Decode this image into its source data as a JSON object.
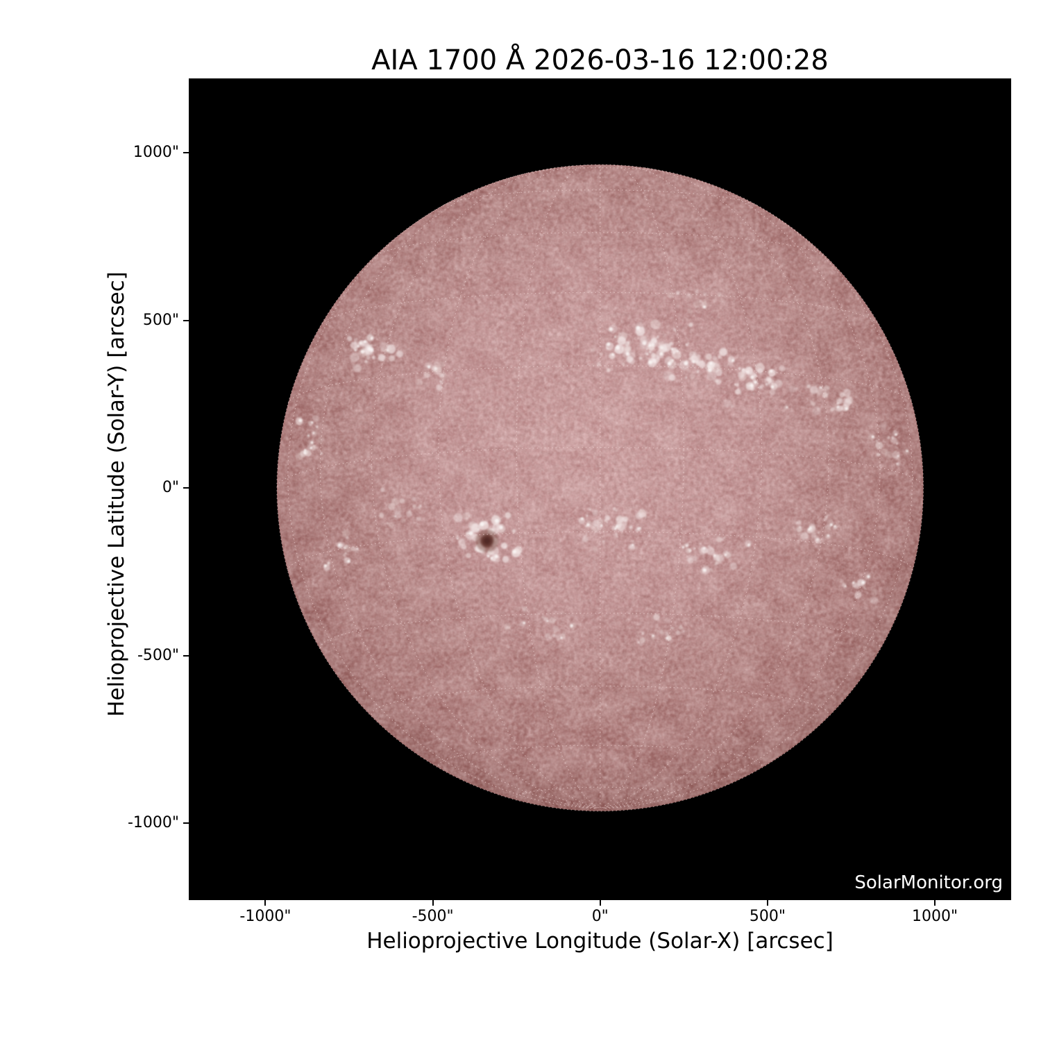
{
  "title": "AIA 1700 Å 2026-03-16 12:00:28",
  "watermark": "SolarMonitor.org",
  "axes": {
    "x_label": "Helioprojective Longitude (Solar-X) [arcsec]",
    "y_label": "Helioprojective Latitude (Solar-Y) [arcsec]",
    "x_ticks": [
      {
        "value": -1000,
        "label": "-1000\""
      },
      {
        "value": -500,
        "label": "-500\""
      },
      {
        "value": 0,
        "label": "0\""
      },
      {
        "value": 500,
        "label": "500\""
      },
      {
        "value": 1000,
        "label": "1000\""
      }
    ],
    "y_ticks": [
      {
        "value": 1000,
        "label": "1000\""
      },
      {
        "value": 500,
        "label": "500\""
      },
      {
        "value": 0,
        "label": "0\""
      },
      {
        "value": -500,
        "label": "-500\""
      },
      {
        "value": -1000,
        "label": "-1000\""
      }
    ]
  },
  "colors": {
    "figure_background": "#ffffff",
    "plot_background": "#000000",
    "text": "#000000",
    "watermark_text": "#ffffff",
    "disk_center": "#c79798",
    "disk_mid": "#ab7877",
    "disk_limb": "#774845",
    "plage": "#f2e6e5",
    "plage_core": "#fbf6f5",
    "sunspot_core": "#512a26",
    "sunspot_umbra": "#63362f",
    "sunspot_halo": "#7a4a43",
    "grid_dots": "#f0d7d6"
  },
  "chart_data": {
    "type": "heatmap",
    "title": "AIA 1700 Å 2026-03-16 12:00:28",
    "xlabel": "Helioprojective Longitude (Solar-X) [arcsec]",
    "ylabel": "Helioprojective Latitude (Solar-Y) [arcsec]",
    "xlim": [
      -1228,
      1228
    ],
    "ylim": [
      -1226,
      1222
    ],
    "x_ticks_arcsec": [
      -1000,
      -500,
      0,
      500,
      1000
    ],
    "y_ticks_arcsec": [
      1000,
      500,
      0,
      -500,
      -1000
    ],
    "legend": false,
    "grid": "heliographic dotted grid overlaid on solar disk",
    "watermark": "SolarMonitor.org",
    "solar_disk": {
      "center_arcsec": [
        0,
        0
      ],
      "radius_arcsec": 965,
      "grid_spacing_deg": 15,
      "b0_deg": -7.2,
      "sunspot": {
        "x_arcsec": -338,
        "y_arcsec": -158,
        "radius_arcsec": 20
      },
      "plage_clusters": [
        {
          "x": -690,
          "y": 410,
          "sx": 80,
          "sy": 60,
          "n": 30,
          "i": 0.75
        },
        {
          "x": -500,
          "y": 345,
          "sx": 55,
          "sy": 45,
          "n": 16,
          "i": 0.5
        },
        {
          "x": 140,
          "y": 420,
          "sx": 140,
          "sy": 65,
          "n": 55,
          "i": 0.85
        },
        {
          "x": 300,
          "y": 360,
          "sx": 100,
          "sy": 55,
          "n": 35,
          "i": 0.8
        },
        {
          "x": 470,
          "y": 300,
          "sx": 110,
          "sy": 65,
          "n": 40,
          "i": 0.8
        },
        {
          "x": 280,
          "y": 560,
          "sx": 80,
          "sy": 50,
          "n": 15,
          "i": 0.4
        },
        {
          "x": 680,
          "y": 265,
          "sx": 80,
          "sy": 50,
          "n": 22,
          "i": 0.6
        },
        {
          "x": 860,
          "y": 120,
          "sx": 55,
          "sy": 70,
          "n": 18,
          "i": 0.5
        },
        {
          "x": -860,
          "y": 140,
          "sx": 45,
          "sy": 80,
          "n": 18,
          "i": 0.5
        },
        {
          "x": -335,
          "y": -160,
          "sx": 90,
          "sy": 80,
          "n": 60,
          "i": 0.95
        },
        {
          "x": -600,
          "y": -70,
          "sx": 65,
          "sy": 50,
          "n": 18,
          "i": 0.45
        },
        {
          "x": 50,
          "y": -120,
          "sx": 130,
          "sy": 70,
          "n": 40,
          "i": 0.6
        },
        {
          "x": 330,
          "y": -200,
          "sx": 110,
          "sy": 60,
          "n": 32,
          "i": 0.55
        },
        {
          "x": 640,
          "y": -130,
          "sx": 80,
          "sy": 50,
          "n": 20,
          "i": 0.5
        },
        {
          "x": -170,
          "y": -420,
          "sx": 90,
          "sy": 50,
          "n": 18,
          "i": 0.4
        },
        {
          "x": 180,
          "y": -420,
          "sx": 90,
          "sy": 50,
          "n": 16,
          "i": 0.4
        },
        {
          "x": 770,
          "y": -300,
          "sx": 65,
          "sy": 50,
          "n": 15,
          "i": 0.45
        },
        {
          "x": -780,
          "y": -190,
          "sx": 60,
          "sy": 55,
          "n": 16,
          "i": 0.45
        }
      ]
    }
  }
}
